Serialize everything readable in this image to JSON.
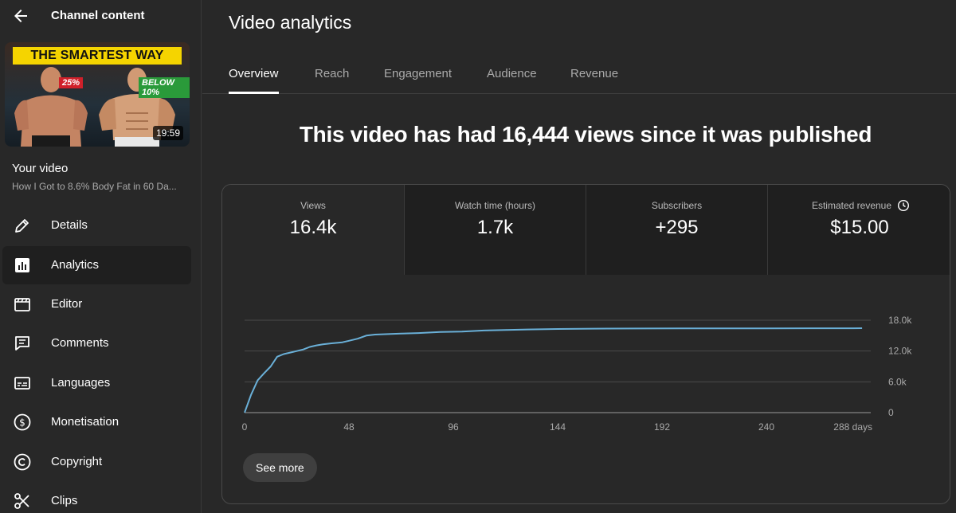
{
  "sidebar": {
    "title": "Channel content",
    "thumbnail": {
      "banner": "THE SMARTEST WAY",
      "tag_left": "25%",
      "tag_right": "BELOW 10%",
      "duration": "19:59"
    },
    "your_video_label": "Your video",
    "video_title": "How I Got to 8.6% Body Fat in 60 Da...",
    "items": [
      {
        "label": "Details",
        "icon": "pencil-icon"
      },
      {
        "label": "Analytics",
        "icon": "analytics-icon"
      },
      {
        "label": "Editor",
        "icon": "editor-icon"
      },
      {
        "label": "Comments",
        "icon": "comments-icon"
      },
      {
        "label": "Languages",
        "icon": "subtitles-icon"
      },
      {
        "label": "Monetisation",
        "icon": "dollar-icon"
      },
      {
        "label": "Copyright",
        "icon": "copyright-icon"
      },
      {
        "label": "Clips",
        "icon": "scissors-icon"
      }
    ]
  },
  "header": {
    "title": "Video analytics",
    "tabs": [
      "Overview",
      "Reach",
      "Engagement",
      "Audience",
      "Revenue"
    ]
  },
  "headline": "This video has had 16,444 views since it was published",
  "metrics": [
    {
      "label": "Views",
      "value": "16.4k"
    },
    {
      "label": "Watch time (hours)",
      "value": "1.7k"
    },
    {
      "label": "Subscribers",
      "value": "+295"
    },
    {
      "label": "Estimated revenue",
      "value": "$15.00"
    }
  ],
  "see_more_label": "See more",
  "colors": {
    "line": "#6ab0d8",
    "background": "#282828",
    "metric_inactive_bg": "#1f1f1f"
  },
  "chart_data": {
    "type": "line",
    "series": [
      {
        "x": [
          0,
          3,
          6,
          9,
          12,
          15,
          18,
          21,
          24,
          27,
          30,
          33,
          36,
          40,
          45,
          48,
          52,
          56,
          60,
          66,
          72,
          80,
          90,
          100,
          110,
          120,
          130,
          144,
          160,
          180,
          200,
          220,
          240,
          260,
          280,
          284
        ],
        "values": [
          0,
          3500,
          6300,
          7700,
          9000,
          10900,
          11400,
          11700,
          12000,
          12300,
          12800,
          13100,
          13300,
          13500,
          13700,
          14000,
          14400,
          15000,
          15200,
          15300,
          15400,
          15500,
          15700,
          15800,
          16000,
          16100,
          16200,
          16300,
          16350,
          16380,
          16400,
          16410,
          16420,
          16430,
          16440,
          16444
        ]
      }
    ],
    "xticks": [
      "0",
      "48",
      "96",
      "144",
      "192",
      "240",
      "288 days"
    ],
    "xtick_values": [
      0,
      48,
      96,
      144,
      192,
      240,
      288
    ],
    "yticks": [
      "0",
      "6.0k",
      "12.0k",
      "18.0k"
    ],
    "ytick_values": [
      0,
      6000,
      12000,
      18000
    ],
    "xlim": [
      0,
      288
    ],
    "ylim": [
      0,
      18000
    ],
    "grid": true,
    "title": "",
    "xlabel": "",
    "ylabel": ""
  }
}
